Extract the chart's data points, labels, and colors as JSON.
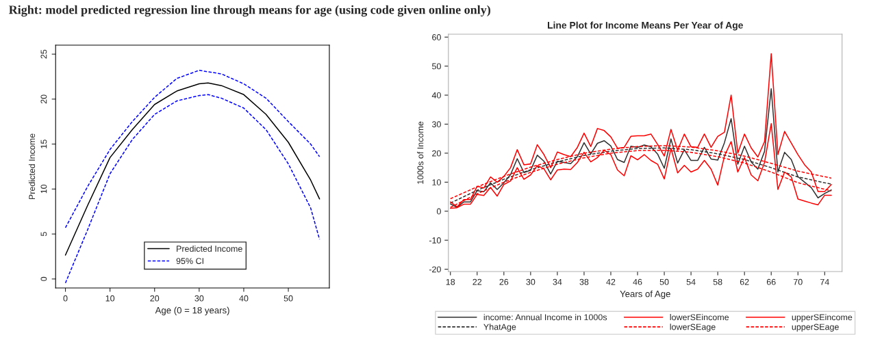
{
  "chart_data": [
    {
      "type": "line",
      "xlabel": "Age (0 = 18 years)",
      "ylabel": "Predicted Income",
      "annotations": [
        "Right: model predicted regression line through means for age (using code given online only)"
      ],
      "xlim": [
        -2.2,
        59.2
      ],
      "ylim": [
        -1.0,
        26.0
      ],
      "xticks": [
        0,
        10,
        20,
        30,
        40,
        50
      ],
      "yticks": [
        0,
        5,
        10,
        15,
        20,
        25
      ],
      "grid": false,
      "legend": "bottom",
      "marker": "none",
      "series": [
        {
          "name": "Predicted Income",
          "color": "#000000",
          "line_style": "solid",
          "x": [
            0,
            5,
            10,
            15,
            20,
            25,
            30,
            32,
            35,
            40,
            45,
            50,
            55,
            57
          ],
          "values": [
            2.65,
            8.2,
            13.5,
            16.6,
            19.4,
            20.9,
            21.7,
            21.8,
            21.5,
            20.5,
            18.3,
            15.2,
            11.0,
            8.9
          ]
        },
        {
          "name": "95% CI",
          "color": "#0000ff",
          "line_style": "dashed",
          "x": [
            0,
            5,
            10,
            15,
            20,
            25,
            30,
            35,
            40,
            45,
            50,
            55,
            57
          ],
          "values": [
            5.7,
            10.3,
            14.4,
            17.5,
            20.2,
            22.3,
            23.2,
            22.8,
            21.7,
            20.1,
            17.5,
            15.0,
            13.6
          ]
        },
        {
          "color": "#0000ff",
          "line_style": "dashed",
          "x": [
            0,
            5,
            10,
            15,
            20,
            25,
            30,
            32,
            35,
            40,
            45,
            50,
            55,
            57
          ],
          "values": [
            -0.45,
            5.5,
            11.7,
            15.5,
            18.3,
            19.8,
            20.4,
            20.5,
            20.1,
            19.0,
            16.6,
            12.8,
            7.9,
            4.4
          ]
        }
      ]
    },
    {
      "type": "line",
      "title": "Line Plot for Income Means Per Year of Age",
      "xlabel": "Years of Age",
      "ylabel": "1000s of Income",
      "xlim": [
        17.7,
        76.6
      ],
      "ylim": [
        -20.8,
        61.0
      ],
      "xticks": [
        18,
        22,
        26,
        30,
        34,
        38,
        42,
        46,
        50,
        54,
        58,
        62,
        66,
        70,
        74
      ],
      "yticks": [
        -20,
        -10,
        0,
        10,
        20,
        30,
        40,
        50,
        60
      ],
      "grid": false,
      "legend": "bottom",
      "marker": "none",
      "x": [
        18,
        19,
        20,
        21,
        22,
        23,
        24,
        25,
        26,
        27,
        28,
        29,
        30,
        31,
        32,
        33,
        34,
        35,
        36,
        37,
        38,
        39,
        40,
        41,
        42,
        43,
        44,
        45,
        46,
        47,
        48,
        49,
        50,
        51,
        52,
        53,
        54,
        55,
        56,
        57,
        58,
        59,
        60,
        61,
        62,
        63,
        64,
        65,
        66,
        67,
        68,
        69,
        70,
        71,
        72,
        73,
        74,
        75
      ],
      "series": [
        {
          "name": "income: Annual Income in 1000s",
          "color": "#303030",
          "line_style": "solid",
          "values": [
            2.5,
            1.3,
            3.2,
            3.2,
            7.1,
            6.7,
            9.8,
            7.5,
            9.8,
            12.6,
            18.1,
            13.3,
            14.1,
            19.3,
            17.2,
            12.8,
            17.2,
            16.8,
            16.4,
            18.8,
            23.6,
            19.7,
            23.4,
            24.3,
            22.5,
            17.8,
            16.8,
            22.4,
            22.0,
            22.8,
            22.2,
            19.7,
            14.8,
            24.9,
            16.6,
            21.2,
            17.5,
            17.5,
            22.0,
            18.0,
            17.6,
            23.6,
            31.9,
            16.2,
            22.4,
            17.0,
            14.5,
            20.6,
            42.2,
            13.5,
            20.3,
            17.8,
            11.9,
            10.0,
            8.1,
            4.6,
            6.1,
            7.3
          ]
        },
        {
          "name": "YhatAge",
          "color": "#303030",
          "line_style": "dashed",
          "x": [
            18,
            22,
            26,
            30,
            34,
            38,
            42,
            46,
            50,
            54,
            58,
            62,
            66,
            70,
            75
          ],
          "values": [
            2.8,
            7.2,
            11.0,
            14.3,
            17.0,
            19.2,
            20.7,
            21.6,
            21.8,
            21.2,
            19.8,
            17.8,
            15.0,
            11.8,
            9.3
          ]
        },
        {
          "name": "lowerSEincome",
          "color": "#ff0000",
          "line_style": "solid",
          "values": [
            1.0,
            1.2,
            2.4,
            2.4,
            5.8,
            5.4,
            8.2,
            5.2,
            9.2,
            10.4,
            15.0,
            11.0,
            12.5,
            15.7,
            14.6,
            10.8,
            14.2,
            14.5,
            14.4,
            16.8,
            20.3,
            17.0,
            18.5,
            21.0,
            19.5,
            14.2,
            12.2,
            19.1,
            17.7,
            19.5,
            17.5,
            16.2,
            11.1,
            21.7,
            13.2,
            15.8,
            13.5,
            14.5,
            17.5,
            14.5,
            9.0,
            19.0,
            24.0,
            13.5,
            18.5,
            12.5,
            10.5,
            16.8,
            30.2,
            7.5,
            13.5,
            11.8,
            4.2,
            3.5,
            2.8,
            2.2,
            5.5,
            5.5
          ]
        },
        {
          "name": "lowerSEage",
          "color": "#ff0000",
          "line_style": "dashed",
          "x": [
            18,
            22,
            26,
            30,
            34,
            38,
            42,
            46,
            50,
            54,
            58,
            62,
            66,
            70,
            75
          ],
          "values": [
            1.3,
            6.0,
            10.0,
            13.4,
            16.2,
            18.4,
            20.0,
            20.9,
            21.0,
            20.3,
            18.8,
            16.6,
            13.5,
            9.8,
            7.0
          ]
        },
        {
          "name": "upperSEincome",
          "color": "#ff0000",
          "line_style": "solid",
          "values": [
            3.2,
            1.5,
            4.0,
            4.0,
            8.6,
            8.0,
            11.8,
            10.0,
            12.0,
            15.0,
            21.2,
            16.0,
            16.3,
            22.9,
            19.5,
            15.0,
            20.4,
            19.5,
            18.8,
            22.0,
            26.9,
            22.3,
            28.5,
            27.8,
            25.6,
            21.7,
            22.0,
            25.8,
            26.0,
            26.0,
            26.6,
            23.0,
            19.0,
            28.2,
            21.0,
            26.6,
            22.2,
            22.0,
            26.6,
            22.0,
            25.8,
            27.2,
            40.0,
            20.0,
            26.6,
            21.8,
            18.7,
            24.0,
            54.3,
            19.5,
            27.5,
            23.5,
            19.5,
            16.0,
            13.5,
            6.8,
            6.8,
            9.2
          ]
        },
        {
          "name": "upperSEage",
          "color": "#ff0000",
          "line_style": "dashed",
          "x": [
            18,
            22,
            26,
            30,
            34,
            38,
            42,
            46,
            50,
            54,
            58,
            62,
            66,
            70,
            75
          ],
          "values": [
            4.3,
            8.4,
            12.0,
            15.2,
            17.8,
            20.0,
            21.4,
            22.3,
            22.6,
            22.1,
            20.8,
            19.0,
            16.5,
            13.8,
            11.4
          ]
        }
      ]
    }
  ]
}
